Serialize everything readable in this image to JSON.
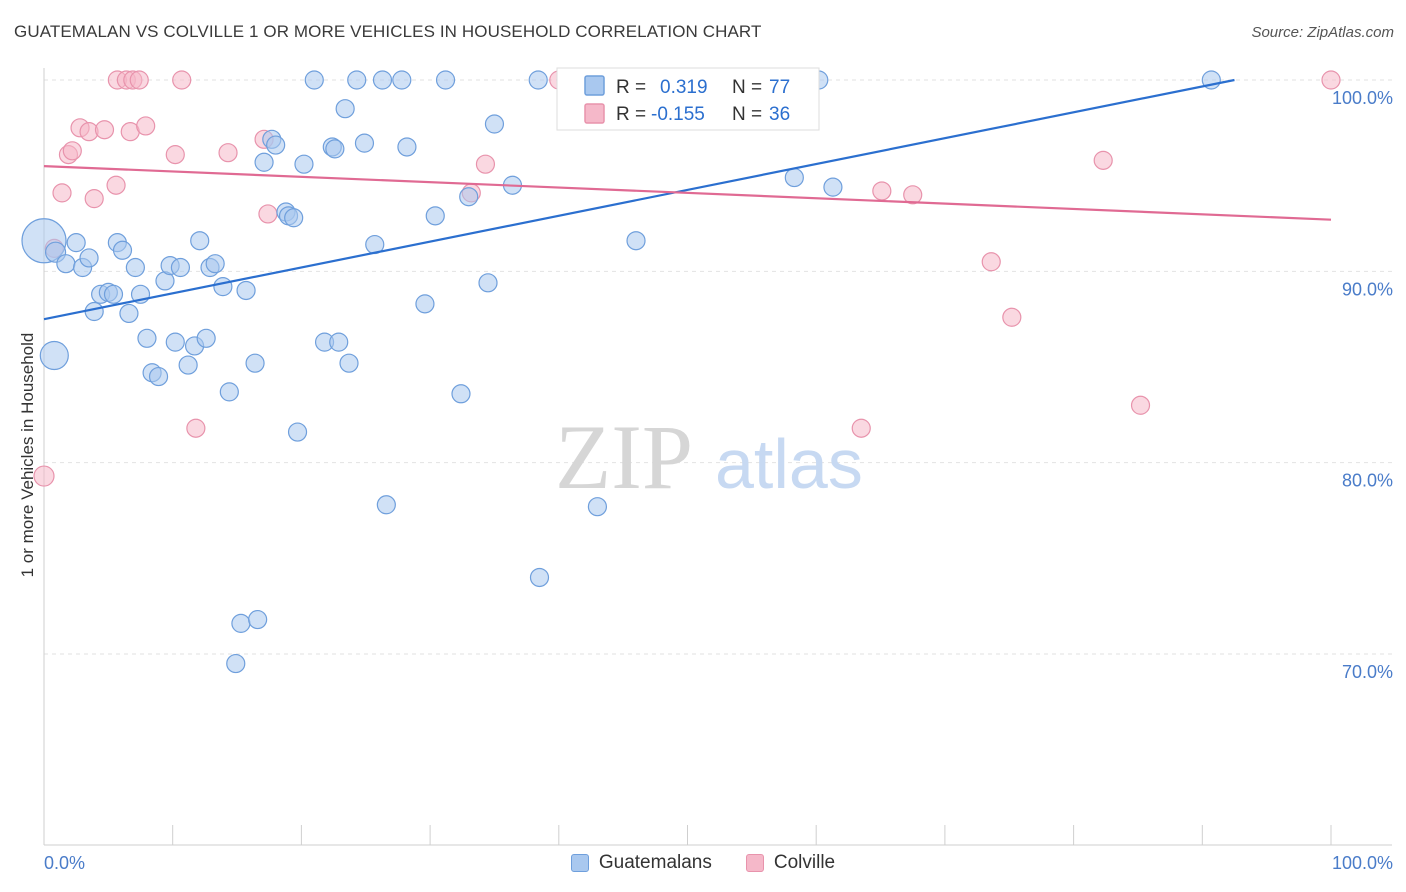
{
  "title": "GUATEMALAN VS COLVILLE 1 OR MORE VEHICLES IN HOUSEHOLD CORRELATION CHART",
  "source": "Source: ZipAtlas.com",
  "watermark": {
    "zip": "ZIP",
    "atlas": "atlas"
  },
  "colors": {
    "blue_fill": "#a9c8ef",
    "blue_stroke": "#6f9fdc",
    "blue_line": "#2b6fcf",
    "pink_fill": "#f5b8c9",
    "pink_stroke": "#e893ac",
    "pink_line": "#e06a93",
    "tick_text": "#4a7cc9"
  },
  "legend": {
    "blue": {
      "r_label": "R =",
      "r_value": "0.319",
      "n_label": "N =",
      "n_value": "77"
    },
    "pink": {
      "r_label": "R =",
      "r_value": "-0.155",
      "n_label": "N =",
      "n_value": "36"
    }
  },
  "chart_data": {
    "type": "scatter",
    "title": "GUATEMALAN VS COLVILLE 1 OR MORE VEHICLES IN HOUSEHOLD CORRELATION CHART",
    "xlabel": "",
    "ylabel": "1 or more Vehicles in Household",
    "x_tick_labels": [
      "0.0%",
      "100.0%"
    ],
    "y_tick_labels": [
      "100.0%",
      "90.0%",
      "80.0%",
      "70.0%"
    ],
    "y_tick_values": [
      100,
      90,
      80,
      70
    ],
    "xlim": [
      0,
      100
    ],
    "ylim": [
      60.5,
      100.8
    ],
    "grid": true,
    "legend_position": "bottom-center",
    "series": [
      {
        "name": "Guatemalans",
        "color": "#6f9fdc",
        "trend": [
          [
            0,
            87.5
          ],
          [
            92.5,
            100.0
          ]
        ],
        "points": [
          [
            0.0,
            91.6,
            22
          ],
          [
            0.8,
            85.6,
            14
          ],
          [
            0.9,
            91.0,
            10
          ],
          [
            1.7,
            90.4,
            9
          ],
          [
            2.5,
            91.5,
            9
          ],
          [
            3.0,
            90.2,
            9
          ],
          [
            3.5,
            90.7,
            9
          ],
          [
            3.9,
            87.9,
            9
          ],
          [
            4.4,
            88.8,
            9
          ],
          [
            5.0,
            88.9,
            9
          ],
          [
            5.4,
            88.8,
            9
          ],
          [
            5.7,
            91.5,
            9
          ],
          [
            6.1,
            91.1,
            9
          ],
          [
            6.6,
            87.8,
            9
          ],
          [
            7.1,
            90.2,
            9
          ],
          [
            7.5,
            88.8,
            9
          ],
          [
            8.0,
            86.5,
            9
          ],
          [
            8.4,
            84.7,
            9
          ],
          [
            8.9,
            84.5,
            9
          ],
          [
            9.4,
            89.5,
            9
          ],
          [
            9.8,
            90.3,
            9
          ],
          [
            10.2,
            86.3,
            9
          ],
          [
            10.6,
            90.2,
            9
          ],
          [
            11.2,
            85.1,
            9
          ],
          [
            11.7,
            86.1,
            9
          ],
          [
            12.1,
            91.6,
            9
          ],
          [
            12.6,
            86.5,
            9
          ],
          [
            12.9,
            90.2,
            9
          ],
          [
            13.3,
            90.4,
            9
          ],
          [
            13.9,
            89.2,
            9
          ],
          [
            14.4,
            83.7,
            9
          ],
          [
            14.9,
            69.5,
            9
          ],
          [
            15.3,
            71.6,
            9
          ],
          [
            15.7,
            89.0,
            9
          ],
          [
            16.4,
            85.2,
            9
          ],
          [
            16.6,
            71.8,
            9
          ],
          [
            17.1,
            95.7,
            9
          ],
          [
            17.7,
            96.9,
            9
          ],
          [
            18.0,
            96.6,
            9
          ],
          [
            18.8,
            93.1,
            9
          ],
          [
            19.0,
            92.9,
            9
          ],
          [
            19.4,
            92.8,
            9
          ],
          [
            19.7,
            81.6,
            9
          ],
          [
            20.2,
            95.6,
            9
          ],
          [
            21.0,
            100.0,
            9
          ],
          [
            21.8,
            86.3,
            9
          ],
          [
            22.4,
            96.5,
            9
          ],
          [
            22.6,
            96.4,
            9
          ],
          [
            22.9,
            86.3,
            9
          ],
          [
            23.4,
            98.5,
            9
          ],
          [
            23.7,
            85.2,
            9
          ],
          [
            24.3,
            100.0,
            9
          ],
          [
            24.9,
            96.7,
            9
          ],
          [
            25.7,
            91.4,
            9
          ],
          [
            26.3,
            100.0,
            9
          ],
          [
            26.6,
            77.8,
            9
          ],
          [
            27.8,
            100.0,
            9
          ],
          [
            28.2,
            96.5,
            9
          ],
          [
            29.6,
            88.3,
            9
          ],
          [
            30.4,
            92.9,
            9
          ],
          [
            31.2,
            100.0,
            9
          ],
          [
            32.4,
            83.6,
            9
          ],
          [
            33.0,
            93.9,
            9
          ],
          [
            34.5,
            89.4,
            9
          ],
          [
            35.0,
            97.7,
            9
          ],
          [
            36.4,
            94.5,
            9
          ],
          [
            38.4,
            100.0,
            9
          ],
          [
            38.5,
            74.0,
            9
          ],
          [
            43.0,
            77.7,
            9
          ],
          [
            46.0,
            91.6,
            9
          ],
          [
            46.4,
            100.0,
            9
          ],
          [
            52.8,
            100.0,
            9
          ],
          [
            56.6,
            100.0,
            9
          ],
          [
            58.3,
            94.9,
            9
          ],
          [
            60.2,
            100.0,
            9
          ],
          [
            61.3,
            94.4,
            9
          ],
          [
            90.7,
            100.0,
            9
          ]
        ]
      },
      {
        "name": "Colville",
        "color": "#e893ac",
        "trend": [
          [
            0,
            95.5
          ],
          [
            100,
            92.7
          ]
        ],
        "points": [
          [
            0.0,
            79.3,
            10
          ],
          [
            0.8,
            91.2,
            9
          ],
          [
            1.4,
            94.1,
            9
          ],
          [
            1.9,
            96.1,
            9
          ],
          [
            2.2,
            96.3,
            9
          ],
          [
            2.8,
            97.5,
            9
          ],
          [
            3.5,
            97.3,
            9
          ],
          [
            3.9,
            93.8,
            9
          ],
          [
            4.7,
            97.4,
            9
          ],
          [
            5.6,
            94.5,
            9
          ],
          [
            5.7,
            100.0,
            9
          ],
          [
            6.4,
            100.0,
            9
          ],
          [
            6.7,
            97.3,
            9
          ],
          [
            6.9,
            100.0,
            9
          ],
          [
            7.4,
            100.0,
            9
          ],
          [
            7.9,
            97.6,
            9
          ],
          [
            10.2,
            96.1,
            9
          ],
          [
            10.7,
            100.0,
            9
          ],
          [
            11.8,
            81.8,
            9
          ],
          [
            14.3,
            96.2,
            9
          ],
          [
            17.1,
            96.9,
            9
          ],
          [
            17.4,
            93.0,
            9
          ],
          [
            33.2,
            94.1,
            9
          ],
          [
            34.3,
            95.6,
            9
          ],
          [
            40.0,
            100.0,
            9
          ],
          [
            46.2,
            98.1,
            9
          ],
          [
            49.1,
            100.0,
            9
          ],
          [
            54.5,
            100.0,
            9
          ],
          [
            63.5,
            81.8,
            9
          ],
          [
            65.1,
            94.2,
            9
          ],
          [
            67.5,
            94.0,
            9
          ],
          [
            73.6,
            90.5,
            9
          ],
          [
            75.2,
            87.6,
            9
          ],
          [
            82.3,
            95.8,
            9
          ],
          [
            85.2,
            83.0,
            9
          ],
          [
            100.0,
            100.0,
            9
          ]
        ]
      }
    ]
  }
}
